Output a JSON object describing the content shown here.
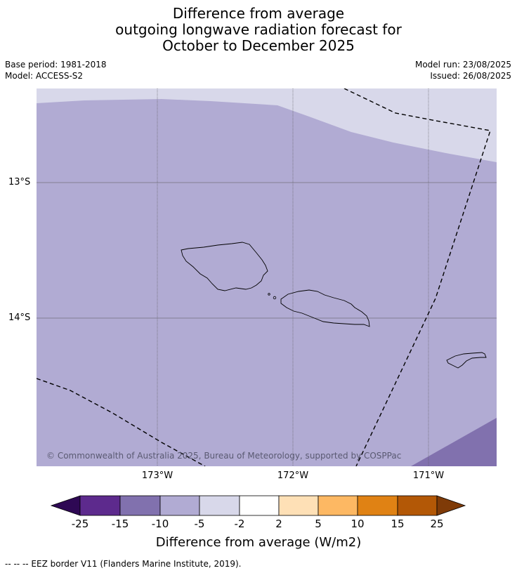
{
  "title": {
    "line1": "Difference from average",
    "line2": "outgoing longwave radiation forecast for",
    "line3": "October to December 2025"
  },
  "meta": {
    "base_period": "Base period: 1981-2018",
    "model": "Model: ACCESS-S2",
    "model_run": "Model run: 23/08/2025",
    "issued": "Issued: 26/08/2025"
  },
  "map": {
    "latitude_labels": [
      "13°S",
      "14°S"
    ],
    "longitude_labels": [
      "173°W",
      "172°W",
      "171°W"
    ],
    "copyright": "© Commonwealth of Australia 2025, Bureau of Meteorology, supported by COSPPac",
    "colors": {
      "main_band": "#b1abd3",
      "light_band": "#d8d8ea",
      "dark_band": "#8171ae"
    }
  },
  "colorbar": {
    "labels": [
      "-25",
      "-15",
      "-10",
      "-5",
      "-2",
      "2",
      "5",
      "10",
      "15",
      "25"
    ],
    "colors": [
      "#2e0854",
      "#5d2a8d",
      "#8171ae",
      "#b1abd3",
      "#d8d8ea",
      "#ffffff",
      "#fee0b6",
      "#fdb863",
      "#e08214",
      "#b35806",
      "#7f3b08"
    ],
    "title": "Difference from average (W/m2)"
  },
  "footnote": "--  --  -- EEZ border V11 (Flanders Marine Institute, 2019)."
}
